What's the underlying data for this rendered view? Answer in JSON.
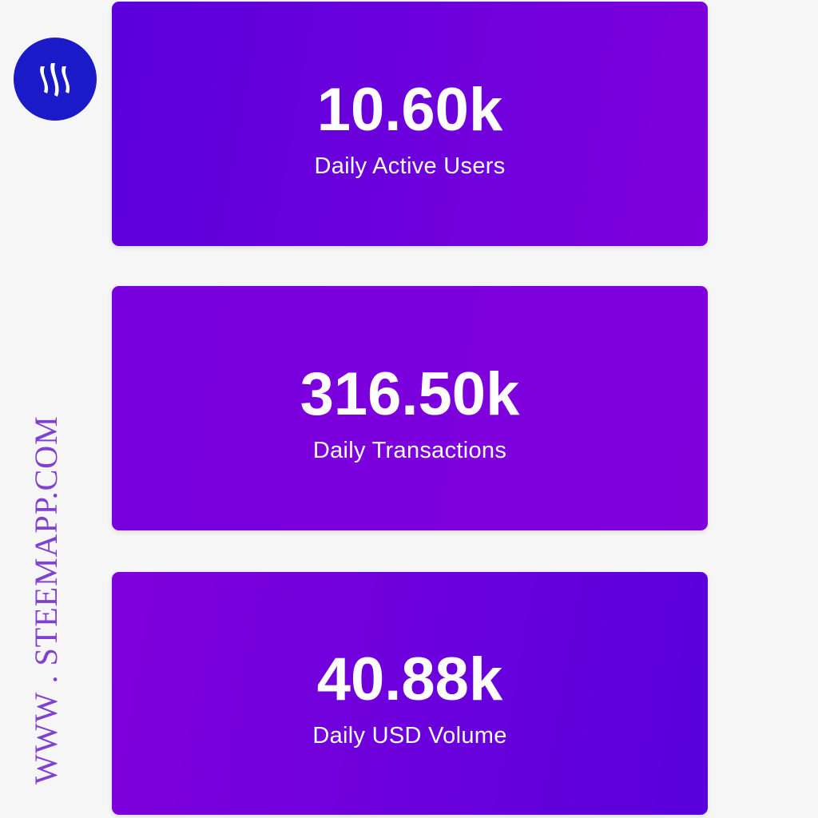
{
  "brand": {
    "logo_icon": "steem-logo-icon",
    "logo_color": "#1a1ac8",
    "watermark": "WWW . STEEMAPP.COM"
  },
  "stats": [
    {
      "value": "10.60k",
      "label": "Daily Active Users"
    },
    {
      "value": "316.50k",
      "label": "Daily Transactions"
    },
    {
      "value": "40.88k",
      "label": "Daily USD Volume"
    }
  ],
  "colors": {
    "card_purple": "#7a00dc",
    "card_indigo": "#5800dc",
    "watermark": "#8040d0"
  }
}
